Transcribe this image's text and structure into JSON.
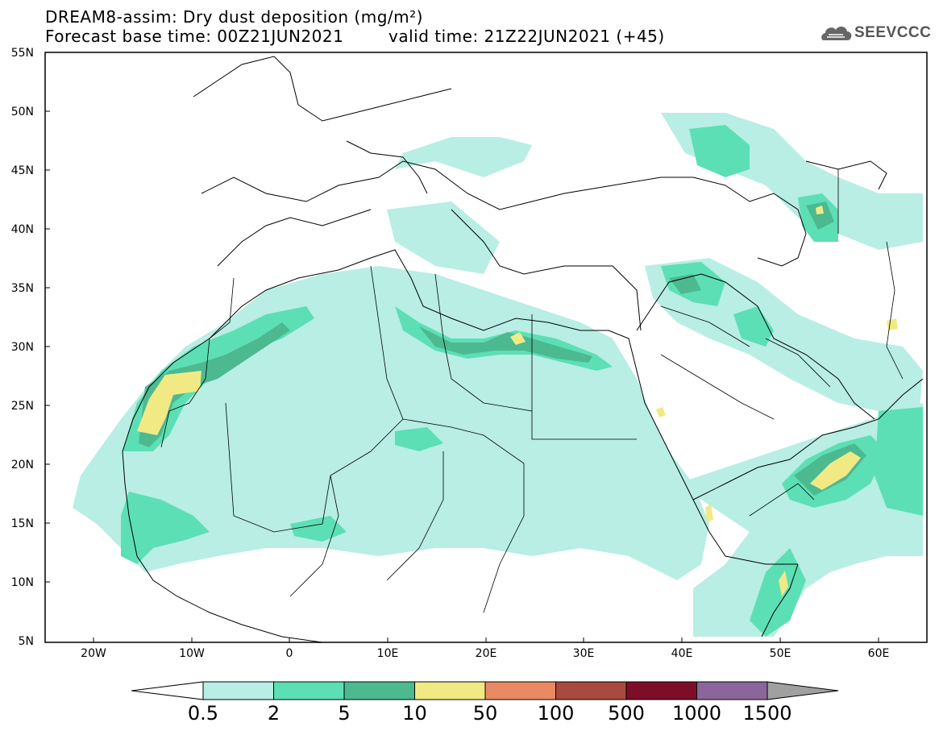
{
  "header": {
    "title_line1": "DREAM8-assim: Dry dust deposition (mg/m²)",
    "title_line2": "Forecast base time: 00Z21JUN2021",
    "valid_time": "valid time: 21Z22JUN2021 (+45)",
    "logo_text": "SEEVCCC"
  },
  "map": {
    "lat_labels": [
      "55N",
      "50N",
      "45N",
      "40N",
      "35N",
      "30N",
      "25N",
      "20N",
      "15N",
      "10N",
      "5N"
    ],
    "lon_labels": [
      "20W",
      "10W",
      "0",
      "10E",
      "20E",
      "30E",
      "40E",
      "50E",
      "60E"
    ]
  },
  "colorbar": {
    "labels": [
      "0.5",
      "2",
      "5",
      "10",
      "50",
      "100",
      "500",
      "1000",
      "1500"
    ],
    "colors": [
      "#b8eee4",
      "#5cdfb4",
      "#4db991",
      "#f1ea84",
      "#e98a63",
      "#a84a3e",
      "#7d0e29",
      "#8b669a"
    ],
    "over_color": "#a0a0a0",
    "under_color": "#ffffff"
  }
}
